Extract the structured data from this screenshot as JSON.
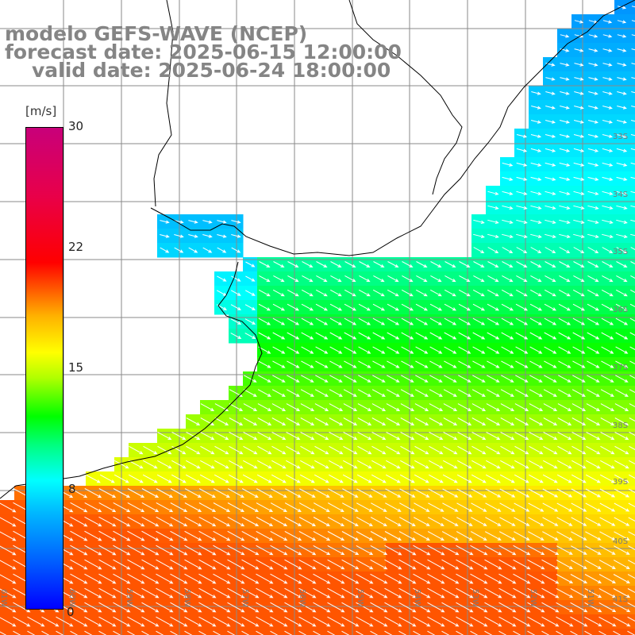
{
  "title": {
    "line1": "modelo GEFS-WAVE (NCEP)",
    "line2": "forecast date: 2025-06-15 12:00:00",
    "line3": "valid date: 2025-06-24 18:00:00"
  },
  "colorbar": {
    "unit": "[m/s]",
    "min": 0,
    "max": 30,
    "tick_labels": [
      "30",
      "22",
      "15",
      "8"
    ],
    "tick_values": [
      30,
      22,
      15,
      8
    ],
    "colors": [
      "#0000ff",
      "#00b8ff",
      "#00ffff",
      "#00ff00",
      "#ffff00",
      "#ff6000",
      "#ff0000",
      "#c8007a"
    ]
  },
  "axes": {
    "lat_labels": [
      "33S",
      "34S",
      "35S",
      "36S",
      "37S",
      "38S",
      "39S",
      "40S",
      "41S"
    ],
    "lat_values": [
      -33,
      -34,
      -35,
      -36,
      -37,
      -38,
      -39,
      -40,
      -41
    ],
    "lon_labels": [
      "61W",
      "60W",
      "59W",
      "58W",
      "57W",
      "56W",
      "55W",
      "54W",
      "53W",
      "52W",
      "51W"
    ],
    "lon_values": [
      -61,
      -60,
      -59,
      -58,
      -57,
      -56,
      -55,
      -54,
      -53,
      -52,
      -51
    ],
    "bottom_edge_label": "0"
  },
  "field": {
    "variable": "wind speed",
    "arrow_direction": "towards southeast",
    "land_color": "#ffffff"
  }
}
